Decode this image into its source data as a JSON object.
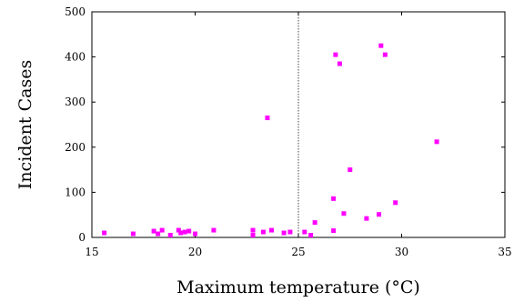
{
  "chart_data": {
    "type": "scatter",
    "xlabel": "Maximum temperature (°C)",
    "ylabel": "Incident Cases",
    "xlim": [
      15,
      35
    ],
    "ylim": [
      0,
      500
    ],
    "x_ticks": [
      "15",
      "20",
      "25",
      "30",
      "35"
    ],
    "y_ticks": [
      "0",
      "100",
      "200",
      "300",
      "400",
      "500"
    ],
    "grid": false,
    "reference_line_x": 25,
    "marker_color": "#ff00ff",
    "series": [
      {
        "points": [
          [
            15.6,
            10
          ],
          [
            17.0,
            8
          ],
          [
            18.0,
            14
          ],
          [
            18.2,
            8
          ],
          [
            18.4,
            16
          ],
          [
            18.8,
            5
          ],
          [
            19.2,
            16
          ],
          [
            19.3,
            10
          ],
          [
            19.5,
            12
          ],
          [
            19.7,
            14
          ],
          [
            20.0,
            8
          ],
          [
            20.9,
            16
          ],
          [
            22.8,
            16
          ],
          [
            22.8,
            5
          ],
          [
            23.3,
            12
          ],
          [
            23.5,
            265
          ],
          [
            23.7,
            16
          ],
          [
            24.3,
            10
          ],
          [
            24.6,
            12
          ],
          [
            25.3,
            12
          ],
          [
            25.6,
            5
          ],
          [
            25.8,
            33
          ],
          [
            26.7,
            86
          ],
          [
            26.7,
            15
          ],
          [
            26.8,
            405
          ],
          [
            27.0,
            385
          ],
          [
            27.2,
            53
          ],
          [
            27.5,
            150
          ],
          [
            28.3,
            42
          ],
          [
            28.9,
            51
          ],
          [
            29.0,
            425
          ],
          [
            29.2,
            405
          ],
          [
            29.7,
            77
          ],
          [
            31.7,
            212
          ]
        ]
      }
    ]
  }
}
